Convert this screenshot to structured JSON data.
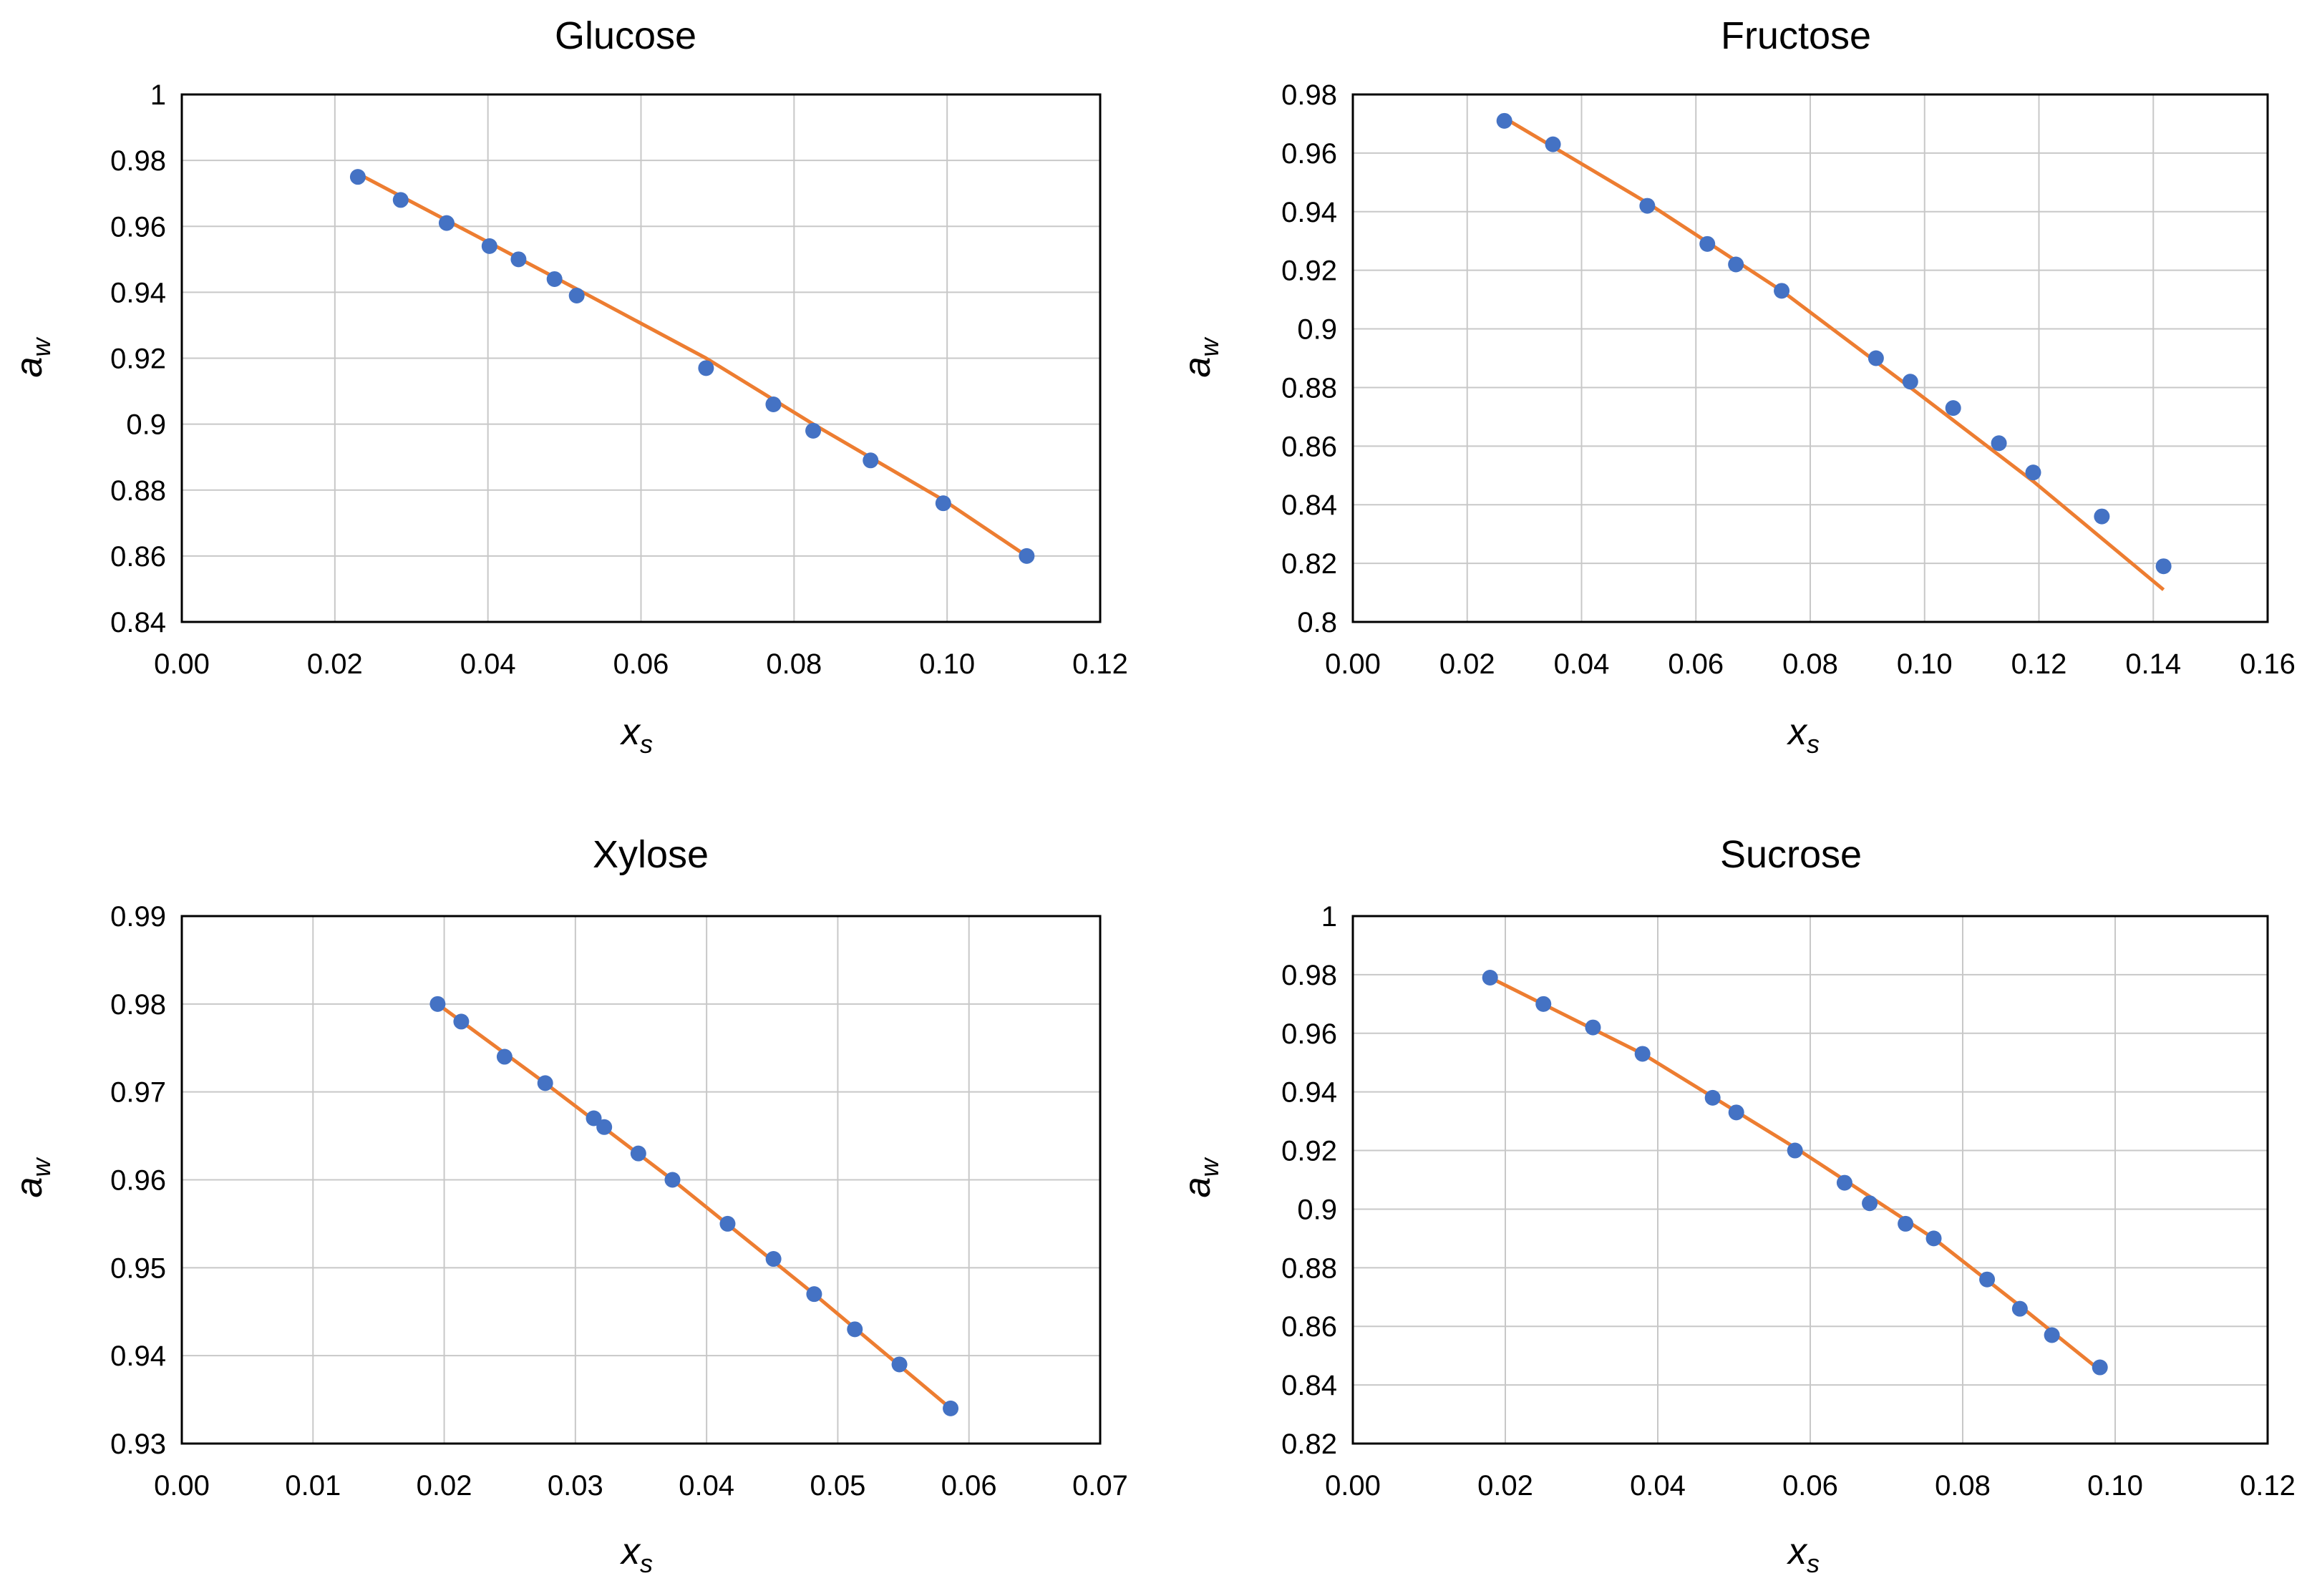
{
  "charts": [
    {
      "title": "Glucose",
      "xlabel": "x",
      "xlabel_sub": "s",
      "ylabel": "a",
      "ylabel_sub": "w",
      "xticks": [
        "0.00",
        "0.02",
        "0.04",
        "0.06",
        "0.08",
        "0.10",
        "0.12"
      ],
      "yticks": [
        "0.84",
        "0.86",
        "0.88",
        "0.9",
        "0.92",
        "0.94",
        "0.96",
        "0.98",
        "1"
      ]
    },
    {
      "title": "Fructose",
      "xlabel": "x",
      "xlabel_sub": "s",
      "ylabel": "a",
      "ylabel_sub": "w",
      "xticks": [
        "0.00",
        "0.02",
        "0.04",
        "0.06",
        "0.08",
        "0.10",
        "0.12",
        "0.14",
        "0.16"
      ],
      "yticks": [
        "0.8",
        "0.82",
        "0.84",
        "0.86",
        "0.88",
        "0.9",
        "0.92",
        "0.94",
        "0.96",
        "0.98"
      ]
    },
    {
      "title": "Xylose",
      "xlabel": "x",
      "xlabel_sub": "s",
      "ylabel": "a",
      "ylabel_sub": "w",
      "xticks": [
        "0.00",
        "0.01",
        "0.02",
        "0.03",
        "0.04",
        "0.05",
        "0.06",
        "0.07"
      ],
      "yticks": [
        "0.93",
        "0.94",
        "0.95",
        "0.96",
        "0.97",
        "0.98",
        "0.99"
      ]
    },
    {
      "title": "Sucrose",
      "xlabel": "x",
      "xlabel_sub": "s",
      "ylabel": "a",
      "ylabel_sub": "w",
      "xticks": [
        "0.00",
        "0.02",
        "0.04",
        "0.06",
        "0.08",
        "0.10",
        "0.12"
      ],
      "yticks": [
        "0.82",
        "0.84",
        "0.86",
        "0.88",
        "0.9",
        "0.92",
        "0.94",
        "0.96",
        "0.98",
        "1"
      ]
    }
  ],
  "chart_data": [
    {
      "type": "scatter",
      "title": "Glucose",
      "xlim": [
        0,
        0.12
      ],
      "ylim": [
        0.84,
        1.0
      ],
      "grid": true,
      "points": {
        "x": [
          0.023,
          0.0286,
          0.0346,
          0.0402,
          0.044,
          0.0487,
          0.0516,
          0.0685,
          0.0773,
          0.0825,
          0.09,
          0.0995,
          0.1104
        ],
        "y": [
          0.975,
          0.968,
          0.961,
          0.954,
          0.95,
          0.944,
          0.939,
          0.917,
          0.906,
          0.898,
          0.889,
          0.876,
          0.86
        ]
      },
      "fit": {
        "x": [
          0.023,
          0.0402,
          0.0516,
          0.0685,
          0.0825,
          0.0995,
          0.1104
        ],
        "y": [
          0.976,
          0.955,
          0.941,
          0.92,
          0.9,
          0.877,
          0.86
        ]
      },
      "colors": {
        "points": "#4472c4",
        "fit": "#ed7d31"
      }
    },
    {
      "type": "scatter",
      "title": "Fructose",
      "xlim": [
        0,
        0.16
      ],
      "ylim": [
        0.8,
        0.98
      ],
      "grid": true,
      "points": {
        "x": [
          0.0265,
          0.035,
          0.0515,
          0.062,
          0.067,
          0.075,
          0.0915,
          0.0975,
          0.105,
          0.113,
          0.119,
          0.131,
          0.1418
        ],
        "y": [
          0.971,
          0.963,
          0.942,
          0.929,
          0.922,
          0.913,
          0.89,
          0.882,
          0.873,
          0.861,
          0.851,
          0.836,
          0.819
        ]
      },
      "fit": {
        "x": [
          0.0265,
          0.0515,
          0.075,
          0.0975,
          0.119,
          0.1418
        ],
        "y": [
          0.972,
          0.943,
          0.913,
          0.88,
          0.848,
          0.811
        ]
      },
      "colors": {
        "points": "#4472c4",
        "fit": "#ed7d31"
      }
    },
    {
      "type": "scatter",
      "title": "Xylose",
      "xlim": [
        0,
        0.07
      ],
      "ylim": [
        0.93,
        0.99
      ],
      "grid": true,
      "points": {
        "x": [
          0.0195,
          0.0213,
          0.0246,
          0.0277,
          0.0314,
          0.0322,
          0.0348,
          0.0374,
          0.0416,
          0.0451,
          0.0482,
          0.0513,
          0.0547,
          0.0586
        ],
        "y": [
          0.98,
          0.978,
          0.974,
          0.971,
          0.967,
          0.966,
          0.963,
          0.96,
          0.955,
          0.951,
          0.947,
          0.943,
          0.939,
          0.934
        ]
      },
      "fit": {
        "x": [
          0.0195,
          0.0277,
          0.0374,
          0.0482,
          0.0586
        ],
        "y": [
          0.98,
          0.971,
          0.96,
          0.947,
          0.934
        ]
      },
      "colors": {
        "points": "#4472c4",
        "fit": "#ed7d31"
      }
    },
    {
      "type": "scatter",
      "title": "Sucrose",
      "xlim": [
        0,
        0.12
      ],
      "ylim": [
        0.82,
        1.0
      ],
      "grid": true,
      "points": {
        "x": [
          0.018,
          0.025,
          0.0315,
          0.038,
          0.0472,
          0.0503,
          0.058,
          0.0645,
          0.0678,
          0.0725,
          0.0762,
          0.0832,
          0.0875,
          0.0917,
          0.098
        ],
        "y": [
          0.979,
          0.97,
          0.962,
          0.953,
          0.938,
          0.933,
          0.92,
          0.909,
          0.902,
          0.895,
          0.89,
          0.876,
          0.866,
          0.857,
          0.846
        ]
      },
      "fit": {
        "x": [
          0.018,
          0.038,
          0.058,
          0.0762,
          0.0875,
          0.098
        ],
        "y": [
          0.979,
          0.953,
          0.921,
          0.89,
          0.867,
          0.845
        ]
      },
      "colors": {
        "points": "#4472c4",
        "fit": "#ed7d31"
      }
    }
  ]
}
